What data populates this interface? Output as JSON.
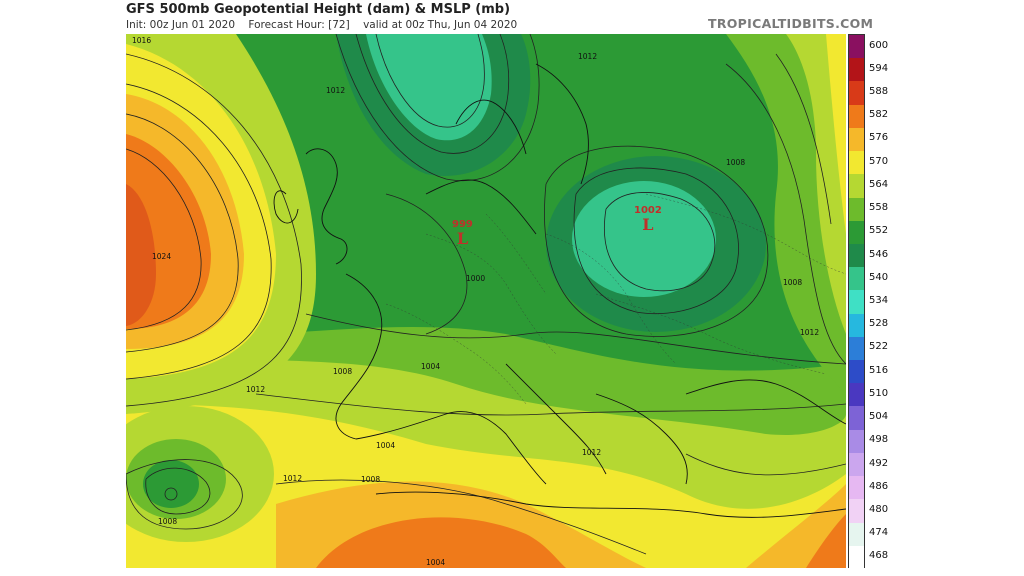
{
  "header": {
    "title": "GFS 500mb Geopotential Height (dam) & MSLP (mb)",
    "subtitle_init": "Init: 00z Jun 01 2020",
    "subtitle_forecast": "Forecast Hour: [72]",
    "subtitle_valid": "valid at 00z Thu, Jun 04 2020",
    "credit": "TROPICALTIDBITS.COM"
  },
  "lows": [
    {
      "pressure": "999",
      "symbol": "L"
    },
    {
      "pressure": "1002",
      "symbol": "L"
    }
  ],
  "isobar_labels": [
    "1016",
    "1024",
    "1012",
    "1000",
    "1004",
    "1008",
    "1012",
    "1008",
    "1008",
    "1012",
    "1004",
    "1008",
    "1012",
    "1004",
    "1012",
    "1008",
    "1012"
  ],
  "colorbar": {
    "labels": [
      "600",
      "594",
      "588",
      "582",
      "576",
      "570",
      "564",
      "558",
      "552",
      "546",
      "540",
      "534",
      "528",
      "522",
      "516",
      "510",
      "504",
      "498",
      "492",
      "486",
      "480",
      "474",
      "468"
    ],
    "colors": [
      "#8a1060",
      "#b31418",
      "#d83a18",
      "#ef7a1a",
      "#f5b82a",
      "#f2e830",
      "#b5d832",
      "#6dbb2c",
      "#2c9a35",
      "#1f8a4a",
      "#35c48a",
      "#3fe0c5",
      "#26b8df",
      "#2c7ed8",
      "#2d4cc8",
      "#4a38c0",
      "#7d63d6",
      "#a98be6",
      "#cba6ee",
      "#e6b8f2",
      "#f1d2f5",
      "#e6f5ef",
      "#ffffff"
    ]
  },
  "map_colors": {
    "orange": "#ef7a1a",
    "dark_orange": "#e05a1a",
    "yellow_orange": "#f5b82a",
    "yellow": "#f2e830",
    "yellow_green": "#b5d832",
    "green": "#6dbb2c",
    "deep_green": "#2c9a35",
    "darkest_green": "#1f8a4a",
    "teal": "#35c48a"
  }
}
